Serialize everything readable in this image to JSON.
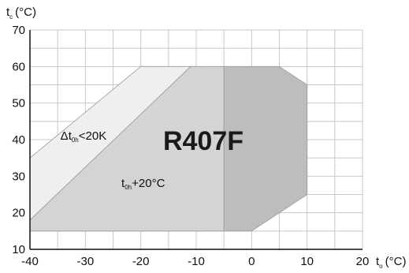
{
  "chart_data": {
    "type": "area",
    "title": "R407F",
    "xlabel": {
      "main": "t",
      "sub": "o",
      "unit": "(°C)"
    },
    "ylabel": {
      "main": "t",
      "sub": "c",
      "unit": "(°C)"
    },
    "xlim": [
      -40,
      20
    ],
    "ylim": [
      10,
      70
    ],
    "x_ticks": [
      -40,
      -30,
      -20,
      -10,
      0,
      10,
      20
    ],
    "y_ticks": [
      10,
      20,
      30,
      40,
      50,
      60,
      70
    ],
    "x_tick_labels": [
      "-40",
      "-30",
      "-20",
      "-10",
      "0",
      "10",
      "20"
    ],
    "y_tick_labels": [
      "10",
      "20",
      "30",
      "40",
      "50",
      "60",
      "70"
    ],
    "grid": true,
    "regions": [
      {
        "id": "delta-t-region",
        "color": "#efefef",
        "points": [
          [
            -40,
            35
          ],
          [
            -20,
            60
          ],
          [
            -11,
            60
          ],
          [
            -40,
            18
          ]
        ]
      },
      {
        "id": "superheat-region",
        "color": "#d4d4d4",
        "points": [
          [
            -40,
            18
          ],
          [
            -11,
            60
          ],
          [
            -5,
            60
          ],
          [
            -5,
            15
          ],
          [
            -40,
            15
          ]
        ]
      },
      {
        "id": "high-evap-region",
        "color": "#bdbdbd",
        "points": [
          [
            -5,
            60
          ],
          [
            5,
            60
          ],
          [
            10,
            55
          ],
          [
            10,
            25
          ],
          [
            0,
            15
          ],
          [
            -5,
            15
          ]
        ]
      }
    ],
    "annotations": [
      {
        "id": "delta-t-annotation",
        "prefix": "Δt",
        "sub": "0h",
        "suffix": "<20K",
        "x": -34.5,
        "y": 40
      },
      {
        "id": "superheat-annotation",
        "prefix": "t",
        "sub": "0h",
        "suffix": "+20°C",
        "x": -23.5,
        "y": 27
      }
    ]
  }
}
